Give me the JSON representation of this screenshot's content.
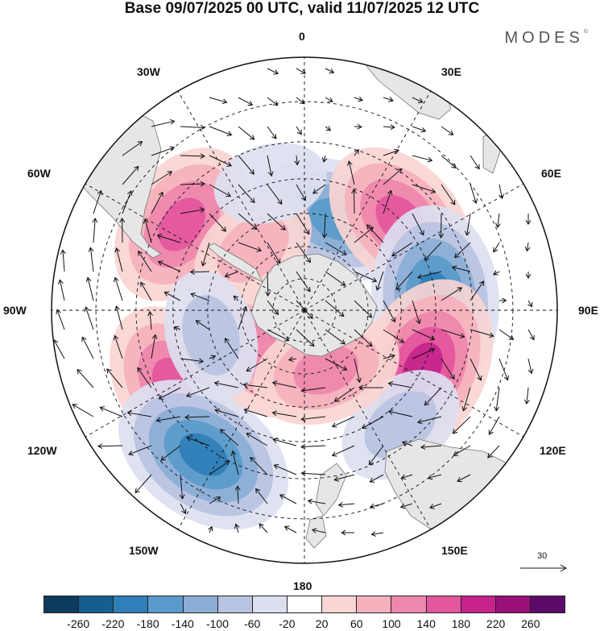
{
  "title": "Base 09/07/2025 00 UTC, valid 11/07/2025 12 UTC",
  "logo": "MODES",
  "logo_mark": "©",
  "longitude_labels": {
    "lon_0": "0",
    "lon_30e": "30E",
    "lon_60e": "60E",
    "lon_90e": "90E",
    "lon_120e": "120E",
    "lon_150e": "150E",
    "lon_180": "180",
    "lon_150w": "150W",
    "lon_120w": "120W",
    "lon_90w": "90W",
    "lon_60w": "60W",
    "lon_30w": "30W"
  },
  "reference_vector": {
    "value": "30"
  },
  "colorbar": {
    "colors": [
      "#0d3b5e",
      "#145f8f",
      "#2f7fb8",
      "#5a9acb",
      "#8aaed6",
      "#b8c3e2",
      "#dcdff0",
      "#ffffff",
      "#f9d5d3",
      "#f5b1bc",
      "#ee87ad",
      "#e4569d",
      "#c6238b",
      "#991079",
      "#5c0a6a"
    ],
    "ticks": [
      "-260",
      "-220",
      "-180",
      "-140",
      "-100",
      "-60",
      "-20",
      "20",
      "60",
      "100",
      "140",
      "180",
      "220",
      "260"
    ]
  },
  "anomaly_centers": [
    {
      "lon": 20,
      "lat": -60,
      "value": -150
    },
    {
      "lon": 47,
      "lat": -50,
      "value": 170
    },
    {
      "lon": 85,
      "lat": -50,
      "value": -190
    },
    {
      "lon": 116,
      "lat": -50,
      "value": 210
    },
    {
      "lon": 140,
      "lat": -45,
      "value": -80
    },
    {
      "lon": -55,
      "lat": -45,
      "value": 160
    },
    {
      "lon": -40,
      "lat": -65,
      "value": 80
    },
    {
      "lon": -120,
      "lat": -45,
      "value": 160
    },
    {
      "lon": -145,
      "lat": -38,
      "value": -190
    },
    {
      "lon": -130,
      "lat": -70,
      "value": 110
    },
    {
      "lon": -105,
      "lat": -60,
      "value": -60
    },
    {
      "lon": 160,
      "lat": -70,
      "value": 100
    },
    {
      "lon": -15,
      "lat": -50,
      "value": -50
    }
  ]
}
